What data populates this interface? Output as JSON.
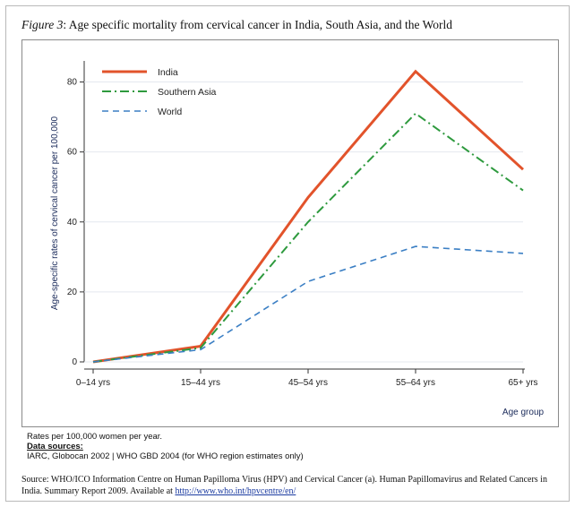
{
  "figure": {
    "label": "Figure 3",
    "title": ": Age specific mortality from cervical cancer in India, South Asia, and the World"
  },
  "notes": {
    "rates_note": "Rates per 100,000 women per year.",
    "sources_heading": "Data sources:",
    "sources_text": "IARC, Globocan 2002 | WHO GBD 2004 (for WHO region estimates only)"
  },
  "source": {
    "text": "Source: WHO/ICO Information Centre on Human Papilloma Virus (HPV) and Cervical Cancer (a). Human Papillomavirus and Related Cancers in India. Summary Report 2009. Available at ",
    "link": "http://www.who.int/hpvcentre/en/"
  },
  "colors": {
    "India": "#e2532b",
    "Southern Asia": "#2e9a3e",
    "World": "#3b7fc4"
  },
  "chart_data": {
    "type": "line",
    "title": "",
    "xlabel": "Age group",
    "ylabel": "Age-specific rates of cervical cancer per 100,000",
    "categories": [
      "0–14 yrs",
      "15–44 yrs",
      "45–54 yrs",
      "55–64 yrs",
      "65+ yrs"
    ],
    "ylim": [
      0,
      85
    ],
    "yticks": [
      0,
      20,
      40,
      60,
      80
    ],
    "grid": "horizontal",
    "legend_position": "top-left",
    "series": [
      {
        "name": "India",
        "values": [
          0,
          4.5,
          47,
          83,
          55
        ],
        "style": "solid"
      },
      {
        "name": "Southern Asia",
        "values": [
          0,
          4,
          40,
          71,
          49
        ],
        "style": "dash-dot"
      },
      {
        "name": "World",
        "values": [
          0,
          3.5,
          23,
          33,
          31
        ],
        "style": "dashed"
      }
    ]
  }
}
